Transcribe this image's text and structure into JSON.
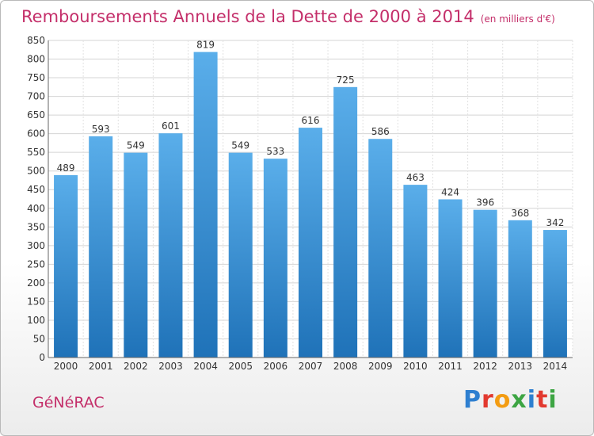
{
  "chart_data": {
    "type": "bar",
    "title": "Remboursements Annuels de la Dette de 2000 à 2014",
    "unit": "(en milliers d'€)",
    "categories": [
      "2000",
      "2001",
      "2002",
      "2003",
      "2004",
      "2005",
      "2006",
      "2007",
      "2008",
      "2009",
      "2010",
      "2011",
      "2012",
      "2013",
      "2014"
    ],
    "values": [
      489,
      593,
      549,
      601,
      819,
      549,
      533,
      616,
      725,
      586,
      463,
      424,
      396,
      368,
      342
    ],
    "xlabel": "",
    "ylabel": "",
    "ylim": [
      0,
      850
    ],
    "yticks": [
      0,
      50,
      100,
      150,
      200,
      250,
      300,
      350,
      400,
      450,
      500,
      550,
      600,
      650,
      700,
      750,
      800,
      850
    ],
    "grid": true,
    "legend": "none",
    "colors": {
      "bar_top": "#5aaeea",
      "bar_bottom": "#1f72b8",
      "text_accent": "#c42f6a"
    }
  },
  "footer": {
    "commune": "GéNéRAC",
    "logo_letters": [
      {
        "ch": "P",
        "color": "#2e7fd0"
      },
      {
        "ch": "r",
        "color": "#e2392f"
      },
      {
        "ch": "o",
        "color": "#f39c12"
      },
      {
        "ch": "x",
        "color": "#3da543"
      },
      {
        "ch": "i",
        "color": "#2e7fd0"
      },
      {
        "ch": "t",
        "color": "#e2392f"
      },
      {
        "ch": "i",
        "color": "#3da543"
      }
    ]
  }
}
